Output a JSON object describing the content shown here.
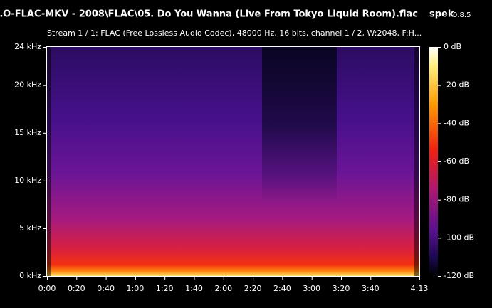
{
  "header": {
    "title": "…O-FLAC-MKV - 2008\\FLAC\\05. Do You Wanna (Live From Tokyo Liquid Room).flac",
    "app": "spek",
    "version": "0.8.5",
    "subtitle": "Stream 1 / 1: FLAC (Free Lossless Audio Codec), 48000 Hz, 16 bits, channel 1 / 2, W:2048, F:H..."
  },
  "frequency_axis": {
    "labels": [
      "24 kHz",
      "20 kHz",
      "15 kHz",
      "10 kHz",
      "5 kHz",
      "0 kHz"
    ]
  },
  "time_axis": {
    "labels": [
      "0:00",
      "0:20",
      "0:40",
      "1:00",
      "1:20",
      "1:40",
      "2:00",
      "2:20",
      "2:40",
      "3:00",
      "3:20",
      "3:40",
      "4:13"
    ]
  },
  "color_scale": {
    "labels": [
      "0 dB",
      "-20 dB",
      "-40 dB",
      "-60 dB",
      "-80 dB",
      "-100 dB",
      "-120 dB"
    ]
  }
}
